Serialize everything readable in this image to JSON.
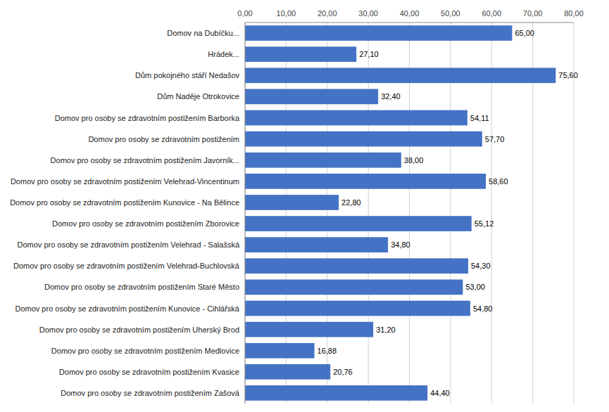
{
  "chart_data": {
    "type": "bar",
    "orientation": "horizontal",
    "categories": [
      "Domov na Dubíčku...",
      "Hrádek...",
      "Dům pokojného stáří Nedašov",
      "Dům Naděje Otrokovice",
      "Domov pro osoby se zdravotním postižením Barborka",
      "Domov pro osoby se zdravotním postižením",
      "Domov pro osoby se zdravotním postižením Javorník...",
      "Domov pro osoby se zdravotním postižením Velehrad-Vincentinum",
      "Domov pro osoby se zdravotním postižením Kunovice - Na Bělince",
      "Domov pro osoby se zdravotním postižením Zborovice",
      "Domov pro osoby se zdravotním postižením Velehrad - Salašská",
      "Domov pro osoby se zdravotním postižením Velehrad-Buchlovská",
      "Domov pro osoby se zdravotním postižením Staré Město",
      "Domov pro osoby se zdravotním postižením Kunovice - Cihlářská",
      "Domov pro osoby se zdravotním postižením Uherský Brod",
      "Domov pro osoby se zdravotním postižením Medlovice",
      "Domov pro osoby se zdravotním postižením Kvasice",
      "Domov pro osoby se zdravotním postižením Zašová"
    ],
    "values": [
      65.0,
      27.1,
      75.6,
      32.4,
      54.11,
      57.7,
      38.0,
      58.6,
      22.8,
      55.12,
      34.8,
      54.3,
      53.0,
      54.8,
      31.2,
      16.88,
      20.76,
      44.4
    ],
    "value_labels": [
      "65,00",
      "27,10",
      "75,60",
      "32,40",
      "54,11",
      "57,70",
      "38,00",
      "58,60",
      "22,80",
      "55,12",
      "34,80",
      "54,30",
      "53,00",
      "54,80",
      "31,20",
      "16,88",
      "20,76",
      "44,40"
    ],
    "data_labels": true,
    "color": "#4472C4",
    "xlim": [
      0,
      80
    ],
    "xticks": [
      {
        "value": 0,
        "label": "0,00"
      },
      {
        "value": 10,
        "label": "10,00"
      },
      {
        "value": 20,
        "label": "20,00"
      },
      {
        "value": 30,
        "label": "30,00"
      },
      {
        "value": 40,
        "label": "40,00"
      },
      {
        "value": 50,
        "label": "50,00"
      },
      {
        "value": 60,
        "label": "60,00"
      },
      {
        "value": 70,
        "label": "70,00"
      },
      {
        "value": 80,
        "label": "80,00"
      }
    ],
    "grid": true
  }
}
